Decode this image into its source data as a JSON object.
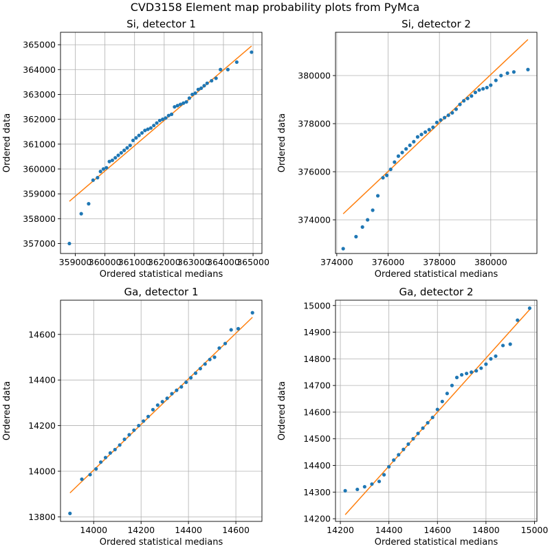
{
  "figure": {
    "suptitle": "CVD3158 Element map probability plots from PyMca"
  },
  "colors": {
    "points": "#1f77b4",
    "fit_line": "#ff7f0e",
    "grid": "#b0b0b0"
  },
  "chart_data": [
    {
      "type": "scatter",
      "title": "Si, detector 1",
      "xlabel": "Ordered statistical medians",
      "ylabel": "Ordered data",
      "grid": true,
      "xlim": [
        358500,
        365300
      ],
      "ylim": [
        356600,
        365500
      ],
      "xticks": [
        359000,
        360000,
        361000,
        362000,
        363000,
        364000,
        365000
      ],
      "xtick_labels": [
        "359000",
        "360000",
        "361000",
        "362000",
        "363000",
        "364000",
        "365000"
      ],
      "yticks": [
        357000,
        358000,
        359000,
        360000,
        361000,
        362000,
        363000,
        364000,
        365000
      ],
      "ytick_labels": [
        "357000",
        "358000",
        "359000",
        "360000",
        "361000",
        "362000",
        "363000",
        "364000",
        "365000"
      ],
      "fit_line": {
        "x": [
          358800,
          364950
        ],
        "y": [
          358700,
          364950
        ]
      },
      "points": {
        "x": [
          358800,
          359200,
          359450,
          359600,
          359750,
          359850,
          359950,
          360050,
          360150,
          360250,
          360350,
          360450,
          360550,
          360650,
          360750,
          360850,
          360950,
          361050,
          361150,
          361250,
          361350,
          361450,
          361550,
          361650,
          361750,
          361850,
          361950,
          362050,
          362150,
          362250,
          362350,
          362450,
          362550,
          362650,
          362750,
          362850,
          362950,
          363050,
          363150,
          363250,
          363350,
          363450,
          363600,
          363750,
          363900,
          364150,
          364450,
          364950
        ],
        "y": [
          357000,
          358200,
          358600,
          359550,
          359650,
          359900,
          360000,
          360050,
          360300,
          360350,
          360450,
          360550,
          360650,
          360750,
          360850,
          360950,
          361150,
          361250,
          361350,
          361450,
          361550,
          361600,
          361650,
          361750,
          361850,
          361950,
          362000,
          362050,
          362150,
          362200,
          362500,
          362550,
          362600,
          362650,
          362700,
          362850,
          363000,
          363050,
          363200,
          363250,
          363350,
          363450,
          363550,
          363650,
          364000,
          364000,
          364300,
          364700
        ]
      }
    },
    {
      "type": "scatter",
      "title": "Si, detector 2",
      "xlabel": "Ordered statistical medians",
      "ylabel": "Ordered data",
      "grid": true,
      "xlim": [
        373950,
        381800
      ],
      "ylim": [
        372600,
        381800
      ],
      "xticks": [
        374000,
        376000,
        378000,
        380000
      ],
      "xtick_labels": [
        "374000",
        "376000",
        "378000",
        "380000"
      ],
      "yticks": [
        374000,
        376000,
        378000,
        380000
      ],
      "yticks_labels_note": "",
      "ytick_labels": [
        "374000",
        "376000",
        "378000",
        "380000"
      ],
      "fit_line": {
        "x": [
          374250,
          381450
        ],
        "y": [
          374250,
          381500
        ]
      },
      "points": {
        "x": [
          374250,
          374750,
          375000,
          375200,
          375400,
          375600,
          375800,
          375950,
          376100,
          376250,
          376400,
          376550,
          376700,
          376850,
          377000,
          377150,
          377300,
          377450,
          377600,
          377750,
          377900,
          378050,
          378200,
          378350,
          378500,
          378650,
          378800,
          378950,
          379100,
          379250,
          379400,
          379550,
          379700,
          379850,
          380000,
          380200,
          380400,
          380650,
          380900,
          381450
        ],
        "y": [
          372800,
          373300,
          373700,
          374000,
          374400,
          375000,
          375750,
          375850,
          376100,
          376400,
          376650,
          376800,
          376950,
          377100,
          377250,
          377450,
          377550,
          377650,
          377750,
          377850,
          378050,
          378150,
          378250,
          378350,
          378450,
          378600,
          378800,
          378950,
          379050,
          379150,
          379300,
          379400,
          379450,
          379500,
          379600,
          379800,
          380000,
          380100,
          380150,
          380250
        ]
      }
    },
    {
      "type": "scatter",
      "title": "Ga, detector 1",
      "xlabel": "Ordered statistical medians",
      "ylabel": "Ordered data",
      "grid": true,
      "xlim": [
        13860,
        14710
      ],
      "ylim": [
        13780,
        14750
      ],
      "xticks": [
        14000,
        14200,
        14400,
        14600
      ],
      "xtick_labels": [
        "14000",
        "14200",
        "14400",
        "14600"
      ],
      "yticks": [
        13800,
        14000,
        14200,
        14400,
        14600
      ],
      "ytick_labels": [
        "13800",
        "14000",
        "14200",
        "14400",
        "14600"
      ],
      "fit_line": {
        "x": [
          13900,
          14670
        ],
        "y": [
          13905,
          14675
        ]
      },
      "points": {
        "x": [
          13900,
          13950,
          13985,
          14010,
          14030,
          14050,
          14070,
          14090,
          14110,
          14130,
          14150,
          14170,
          14190,
          14210,
          14230,
          14250,
          14270,
          14290,
          14310,
          14330,
          14350,
          14370,
          14390,
          14410,
          14430,
          14450,
          14470,
          14490,
          14510,
          14530,
          14555,
          14580,
          14610,
          14670
        ],
        "y": [
          13815,
          13965,
          13985,
          14010,
          14040,
          14060,
          14080,
          14095,
          14115,
          14140,
          14160,
          14180,
          14200,
          14220,
          14240,
          14270,
          14290,
          14305,
          14320,
          14340,
          14355,
          14370,
          14390,
          14410,
          14430,
          14450,
          14470,
          14490,
          14500,
          14540,
          14560,
          14620,
          14625,
          14695
        ]
      }
    },
    {
      "type": "scatter",
      "title": "Ga, detector 2",
      "xlabel": "Ordered statistical medians",
      "ylabel": "Ordered data",
      "grid": true,
      "xlim": [
        14180,
        15010
      ],
      "ylim": [
        14190,
        15020
      ],
      "xticks": [
        14200,
        14400,
        14600,
        14800,
        15000
      ],
      "xtick_labels": [
        "14200",
        "14400",
        "14600",
        "14800",
        "15000"
      ],
      "yticks": [
        14200,
        14300,
        14400,
        14500,
        14600,
        14700,
        14800,
        14900,
        15000
      ],
      "ytick_labels": [
        "14200",
        "14300",
        "14400",
        "14500",
        "14600",
        "14700",
        "14800",
        "14900",
        "15000"
      ],
      "fit_line": {
        "x": [
          14220,
          14980
        ],
        "y": [
          14215,
          14985
        ]
      },
      "points": {
        "x": [
          14220,
          14270,
          14300,
          14330,
          14360,
          14380,
          14400,
          14420,
          14440,
          14460,
          14480,
          14500,
          14520,
          14540,
          14560,
          14580,
          14600,
          14620,
          14640,
          14660,
          14680,
          14700,
          14720,
          14740,
          14760,
          14780,
          14800,
          14820,
          14840,
          14870,
          14900,
          14930,
          14980
        ],
        "y": [
          14305,
          14310,
          14320,
          14330,
          14340,
          14365,
          14395,
          14420,
          14440,
          14460,
          14480,
          14500,
          14520,
          14540,
          14560,
          14580,
          14610,
          14640,
          14670,
          14700,
          14730,
          14740,
          14745,
          14750,
          14755,
          14765,
          14780,
          14800,
          14810,
          14850,
          14855,
          14945,
          14990
        ]
      }
    }
  ]
}
